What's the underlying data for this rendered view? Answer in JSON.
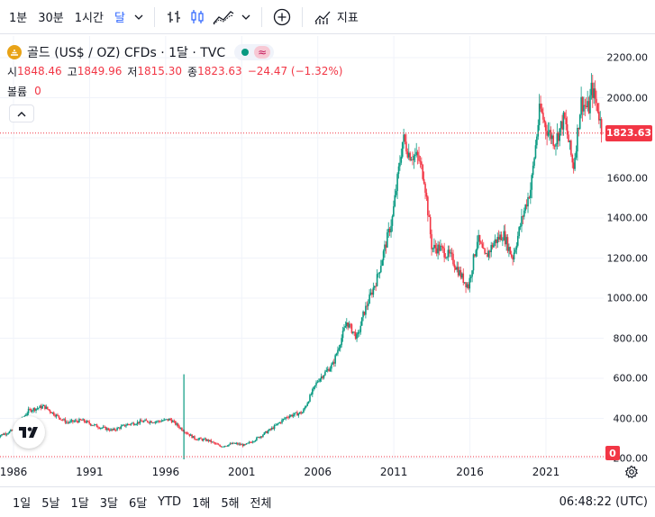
{
  "toolbar": {
    "timeframes": [
      "1분",
      "30분",
      "1시간",
      "달"
    ],
    "active_timeframe": "달",
    "indicators_label": "지표"
  },
  "legend": {
    "symbol": "골드 (US$ / OZ) CFDs · 1달 · TVC",
    "ohlc": [
      {
        "k": "시",
        "v": "1848.46"
      },
      {
        "k": "고",
        "v": "1849.96"
      },
      {
        "k": "저",
        "v": "1815.30"
      },
      {
        "k": "종",
        "v": "1823.63"
      }
    ],
    "change": "−24.47 (−1.32%)",
    "volume_label": "볼륨",
    "volume_value": "0",
    "approx_label": "≈"
  },
  "colors": {
    "up": "#089981",
    "down": "#f23645",
    "accent": "#2962ff",
    "logo": "#e8a317"
  },
  "chart_data": {
    "type": "candlestick",
    "x_ticks": [
      "1986",
      "1991",
      "1996",
      "2001",
      "2006",
      "2011",
      "2016",
      "2021"
    ],
    "y_ticks": [
      "2200.00",
      "2000.00",
      "1800.00",
      "1600.00",
      "1400.00",
      "1200.00",
      "1000.00",
      "800.00",
      "600.00",
      "400.00",
      "200.00"
    ],
    "ylim": [
      0,
      2200
    ],
    "xlim": [
      1984.8,
      2025.7
    ],
    "last_price": "1823.63",
    "last_price_value": 1823.63,
    "volume_last": "0",
    "spike": {
      "year": 1997.2,
      "top": 620
    },
    "anchors": [
      [
        1984.9,
        310
      ],
      [
        1986.0,
        340
      ],
      [
        1987.0,
        440
      ],
      [
        1988.0,
        460
      ],
      [
        1988.7,
        420
      ],
      [
        1989.5,
        380
      ],
      [
        1990.5,
        390
      ],
      [
        1991.5,
        360
      ],
      [
        1992.5,
        340
      ],
      [
        1993.5,
        370
      ],
      [
        1994.5,
        385
      ],
      [
        1995.5,
        385
      ],
      [
        1996.3,
        395
      ],
      [
        1997.0,
        350
      ],
      [
        1997.9,
        300
      ],
      [
        1998.8,
        290
      ],
      [
        1999.6,
        260
      ],
      [
        2000.5,
        275
      ],
      [
        2001.2,
        265
      ],
      [
        2002.0,
        300
      ],
      [
        2003.0,
        350
      ],
      [
        2004.0,
        410
      ],
      [
        2005.0,
        430
      ],
      [
        2006.0,
        590
      ],
      [
        2007.0,
        670
      ],
      [
        2007.9,
        880
      ],
      [
        2008.6,
        800
      ],
      [
        2009.0,
        920
      ],
      [
        2009.9,
        1100
      ],
      [
        2010.9,
        1400
      ],
      [
        2011.6,
        1800
      ],
      [
        2012.0,
        1720
      ],
      [
        2012.6,
        1700
      ],
      [
        2013.0,
        1600
      ],
      [
        2013.5,
        1250
      ],
      [
        2014.0,
        1250
      ],
      [
        2014.8,
        1200
      ],
      [
        2015.5,
        1100
      ],
      [
        2015.9,
        1060
      ],
      [
        2016.5,
        1300
      ],
      [
        2017.0,
        1200
      ],
      [
        2017.6,
        1280
      ],
      [
        2018.2,
        1320
      ],
      [
        2018.8,
        1200
      ],
      [
        2019.5,
        1420
      ],
      [
        2020.0,
        1550
      ],
      [
        2020.6,
        1950
      ],
      [
        2021.0,
        1850
      ],
      [
        2021.6,
        1780
      ],
      [
        2022.2,
        1900
      ],
      [
        2022.8,
        1650
      ],
      [
        2023.3,
        1980
      ],
      [
        2023.8,
        1940
      ],
      [
        2024.0,
        2050
      ],
      [
        2024.4,
        1950
      ],
      [
        2024.7,
        1824
      ]
    ]
  },
  "bottom": {
    "ranges": [
      "1일",
      "5날",
      "1달",
      "3달",
      "6달",
      "YTD",
      "1해",
      "5해",
      "전체"
    ],
    "time": "06:48:22 (UTC)"
  }
}
